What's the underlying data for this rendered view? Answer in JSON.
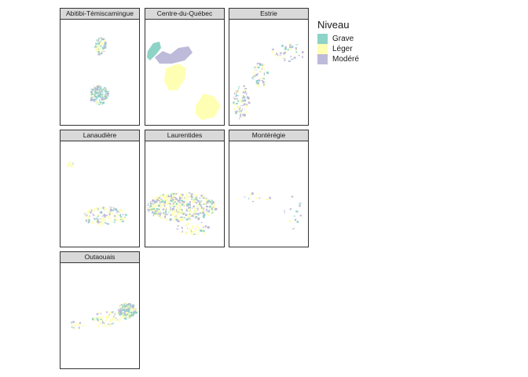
{
  "panels": [
    {
      "id": "abitibi",
      "title": "Abitibi-Témiscamingue"
    },
    {
      "id": "centre",
      "title": "Centre-du-Québec"
    },
    {
      "id": "estrie",
      "title": "Estrie"
    },
    {
      "id": "lanaudiere",
      "title": "Lanaudière"
    },
    {
      "id": "laurentides",
      "title": "Laurentides"
    },
    {
      "id": "monteregie",
      "title": "Montérégie"
    },
    {
      "id": "outaouais",
      "title": "Outaouais"
    }
  ],
  "legend": {
    "title": "Niveau",
    "items": [
      {
        "label": "Grave",
        "color": "#8dd3c7"
      },
      {
        "label": "Léger",
        "color": "#ffffb3"
      },
      {
        "label": "Modéré",
        "color": "#bebada"
      }
    ]
  }
}
